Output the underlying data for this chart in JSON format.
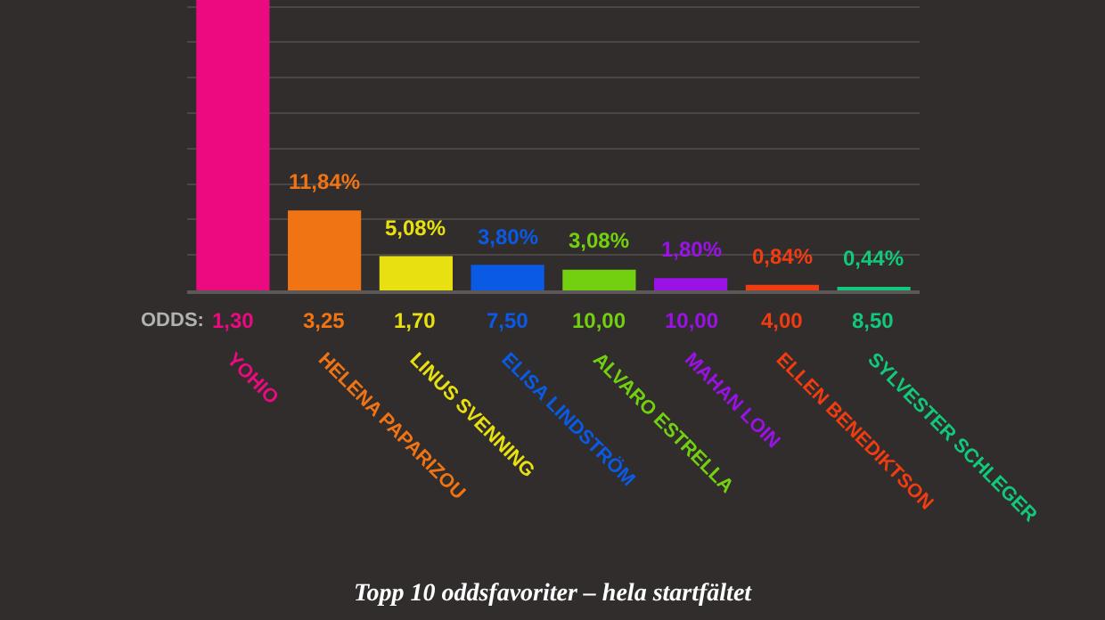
{
  "chart_data": {
    "type": "bar",
    "title": "Topp 10 oddsfavoriter – hela startfältet",
    "categories": [
      "YOHIO",
      "HELENA PAPARIZOU",
      "LINUS SVENNING",
      "ELISA LINDSTRÖM",
      "ALVARO ESTRELLA",
      "MAHAN LOIN",
      "ELLEN BENEDIKTSON",
      "SYLVESTER SCHLEGER"
    ],
    "values": [
      43,
      11.84,
      5.08,
      3.8,
      3.08,
      1.8,
      0.84,
      0.44
    ],
    "colors": [
      "#ec0a80",
      "#f07414",
      "#e8e010",
      "#0a5ae6",
      "#72d010",
      "#9a12e6",
      "#f03c10",
      "#12c87a"
    ],
    "value_labels": [
      null,
      "11,84%",
      "5,08%",
      "3,80%",
      "3,08%",
      "1,80%",
      "0,84%",
      "0,44%"
    ],
    "ylim": [
      0,
      43
    ],
    "yticks": [
      {
        "value": 0,
        "label": null
      },
      {
        "value": 5.25,
        "label": null
      },
      {
        "value": 10.5,
        "label": null
      },
      {
        "value": 15.75,
        "label": null
      },
      {
        "value": 21,
        "label": null
      },
      {
        "value": 26.25,
        "label": null
      },
      {
        "value": 31.5,
        "label": null
      },
      {
        "value": 36.75,
        "label": null
      },
      {
        "value": 42,
        "label": null
      }
    ],
    "grid": "y",
    "tick_labels": "x",
    "annotations": [
      "ODDS:",
      "1,30",
      "3,25",
      "1,70",
      "7,50",
      "10,00",
      "10,00",
      "4,00",
      "8,50"
    ]
  }
}
